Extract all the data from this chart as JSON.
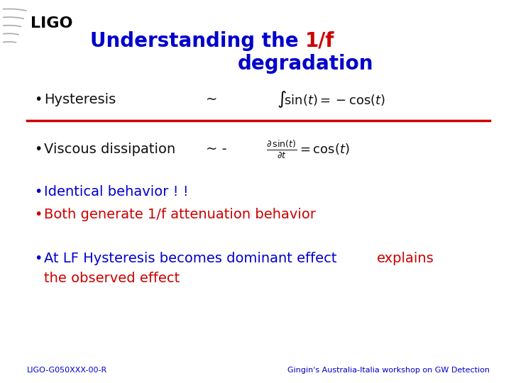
{
  "title_blue": "Understanding the ",
  "title_red": "1/f",
  "title_blue2": "degradation",
  "title_color_blue": "#0000CC",
  "title_color_red": "#CC0000",
  "bg_color": "#FFFFFF",
  "bullet1_label": "Hysteresis",
  "bullet1_tilde": "~",
  "bullet1_formula": "$\\int\\!\\sin(t) = -\\cos(t)$",
  "bullet2_label": "Viscous dissipation",
  "bullet2_tilde": "~ -",
  "bullet2_formula": "$\\frac{\\partial\\,\\sin(t)}{\\partial t} = \\cos(t)$",
  "bullet3": "Identical behavior ! !",
  "bullet4": "Both generate 1/f attenuation behavior",
  "bullet5_blue": "At LF Hysteresis becomes dominant effect",
  "bullet5_red": "explains",
  "bullet5_red2": "the observed effect",
  "color_blue": "#0000CC",
  "color_red": "#CC0000",
  "color_black": "#111111",
  "color_gray": "#AAAAAA",
  "separator_color": "#CC0000",
  "footer_left": "LIGO-G050XXX-00-R",
  "footer_right": "Gingin's Australia-Italia workshop on GW Detection",
  "title_fontsize": 20,
  "body_fontsize": 14,
  "formula_fontsize": 13,
  "footer_fontsize": 8
}
